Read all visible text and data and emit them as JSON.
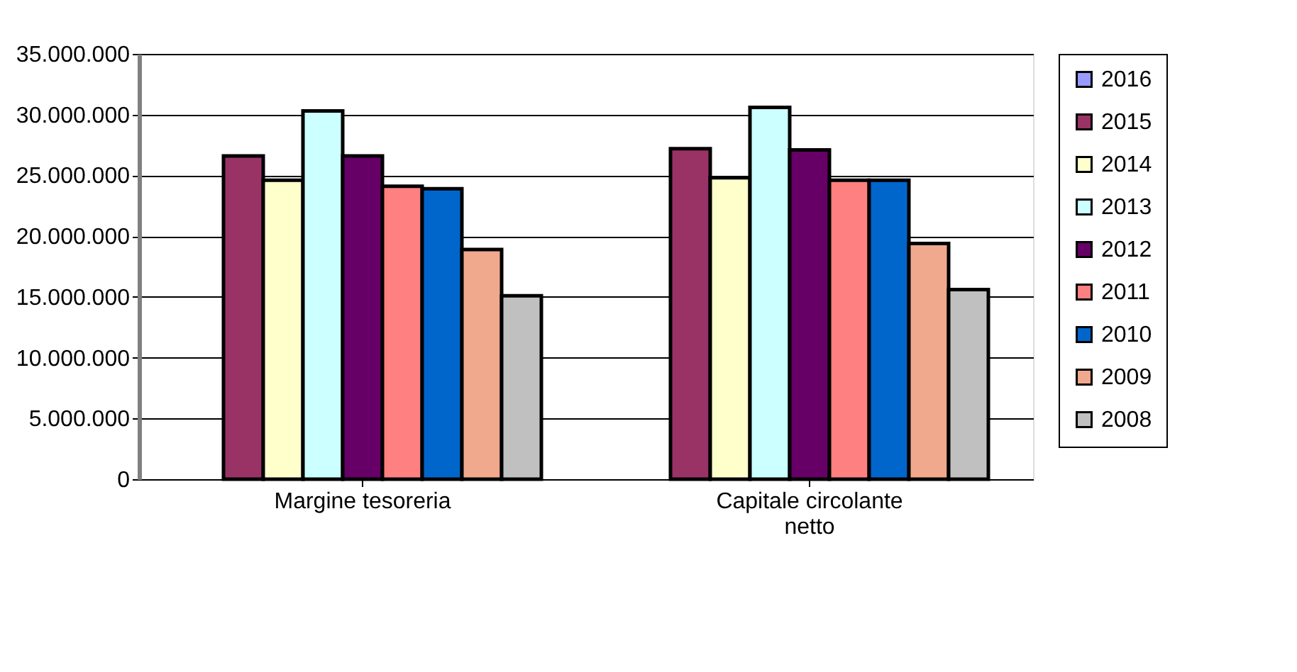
{
  "chart_data": {
    "type": "bar",
    "categories": [
      "Margine tesoreria",
      "Capitale circolante netto"
    ],
    "series": [
      {
        "name": "2016",
        "color": "#9999ff",
        "values": [
          null,
          null
        ]
      },
      {
        "name": "2015",
        "color": "#993366",
        "values": [
          26600000,
          27200000
        ]
      },
      {
        "name": "2014",
        "color": "#ffffcc",
        "values": [
          24600000,
          24800000
        ]
      },
      {
        "name": "2013",
        "color": "#ccffff",
        "values": [
          30300000,
          30600000
        ]
      },
      {
        "name": "2012",
        "color": "#660066",
        "values": [
          26600000,
          27100000
        ]
      },
      {
        "name": "2011",
        "color": "#ff8080",
        "values": [
          24100000,
          24600000
        ]
      },
      {
        "name": "2010",
        "color": "#0066cc",
        "values": [
          23900000,
          24600000
        ]
      },
      {
        "name": "2009",
        "color": "#f0a98c",
        "values": [
          18900000,
          19400000
        ]
      },
      {
        "name": "2008",
        "color": "#c0c0c0",
        "values": [
          15100000,
          15600000
        ]
      }
    ],
    "ylim": [
      0,
      35000000
    ],
    "yticks": [
      {
        "value": 0,
        "label": "0"
      },
      {
        "value": 5000000,
        "label": "5.000.000"
      },
      {
        "value": 10000000,
        "label": "10.000.000"
      },
      {
        "value": 15000000,
        "label": "15.000.000"
      },
      {
        "value": 20000000,
        "label": "20.000.000"
      },
      {
        "value": 25000000,
        "label": "25.000.000"
      },
      {
        "value": 30000000,
        "label": "30.000.000"
      },
      {
        "value": 35000000,
        "label": "35.000.000"
      }
    ],
    "grid": "y",
    "legend": "right"
  }
}
